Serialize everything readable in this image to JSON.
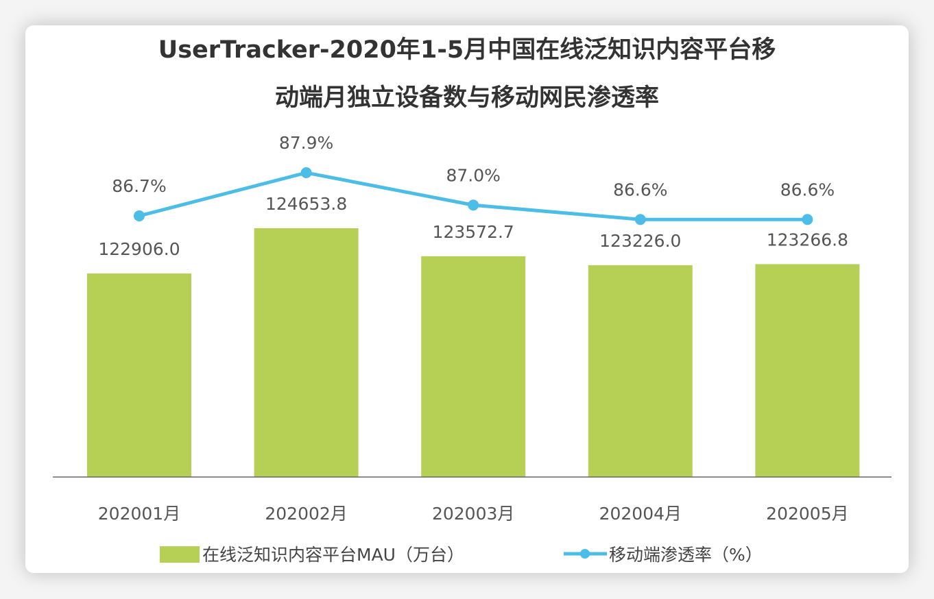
{
  "chart_data": {
    "type": "bar+line",
    "title": [
      "UserTracker-2020年1-5月中国在线泛知识内容平台移",
      "动端月独立设备数与移动网民渗透率"
    ],
    "categories": [
      "202001月",
      "202002月",
      "202003月",
      "202004月",
      "202005月"
    ],
    "series": [
      {
        "name": "在线泛知识内容平台MAU（万台）",
        "type": "bar",
        "color": "#b5d055",
        "values": [
          122906.0,
          124653.8,
          123572.7,
          123226.0,
          123266.8
        ],
        "labels": [
          "122906.0",
          "124653.8",
          "123572.7",
          "123226.0",
          "123266.8"
        ]
      },
      {
        "name": "移动端渗透率（%）",
        "type": "line",
        "color": "#4bbde6",
        "values": [
          86.7,
          87.9,
          87.0,
          86.6,
          86.6
        ],
        "labels": [
          "86.7%",
          "87.9%",
          "87.0%",
          "86.6%",
          "86.6%"
        ]
      }
    ],
    "legend": "bottom",
    "grid": false,
    "axes_visible": false
  }
}
